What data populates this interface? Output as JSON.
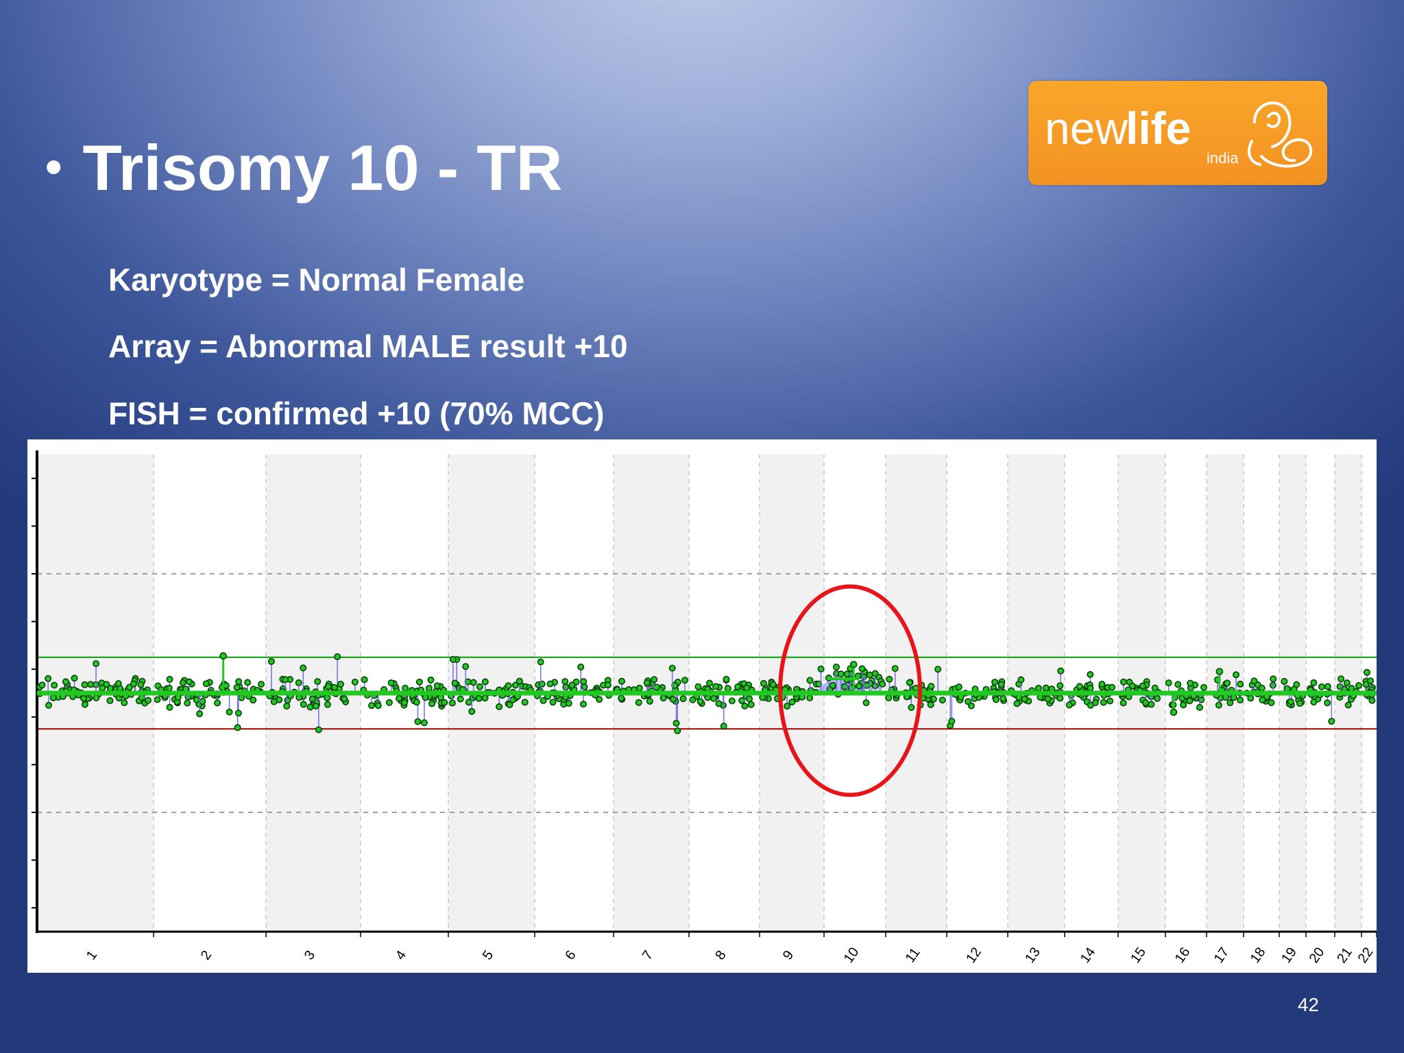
{
  "slide": {
    "bullet": "•",
    "title": "Trisomy 10 - TR",
    "lines": [
      "Karyotype = Normal Female",
      "Array = Abnormal MALE result +10",
      "FISH = confirmed +10 (70% MCC)"
    ],
    "page_number": "42"
  },
  "logo": {
    "text_regular": "new",
    "text_bold": "life",
    "subtext": "india",
    "background_color": "#f7a02a",
    "icon": "mother-child-icon"
  },
  "chart_data": {
    "type": "scatter",
    "title": "",
    "xlabel": "",
    "ylabel": "",
    "categories": [
      "1",
      "2",
      "3",
      "4",
      "5",
      "6",
      "7",
      "8",
      "9",
      "10",
      "11",
      "12",
      "13",
      "14",
      "15",
      "16",
      "17",
      "18",
      "19",
      "20",
      "21",
      "22"
    ],
    "y_baseline": 0,
    "ylim": [
      -5,
      5
    ],
    "threshold_lines": [
      {
        "name": "upper",
        "value": 0.75,
        "color": "#00a000"
      },
      {
        "name": "lower",
        "value": -0.75,
        "color": "#a00000"
      }
    ],
    "dashed_lines": [
      2.5,
      -2.5
    ],
    "highlight": {
      "category": "10",
      "shape": "ellipse",
      "color": "#e8141a"
    },
    "series_color": "#22c922",
    "point_outline_color": "#0a3d0a",
    "gain_fill_color": "#8080ff"
  }
}
